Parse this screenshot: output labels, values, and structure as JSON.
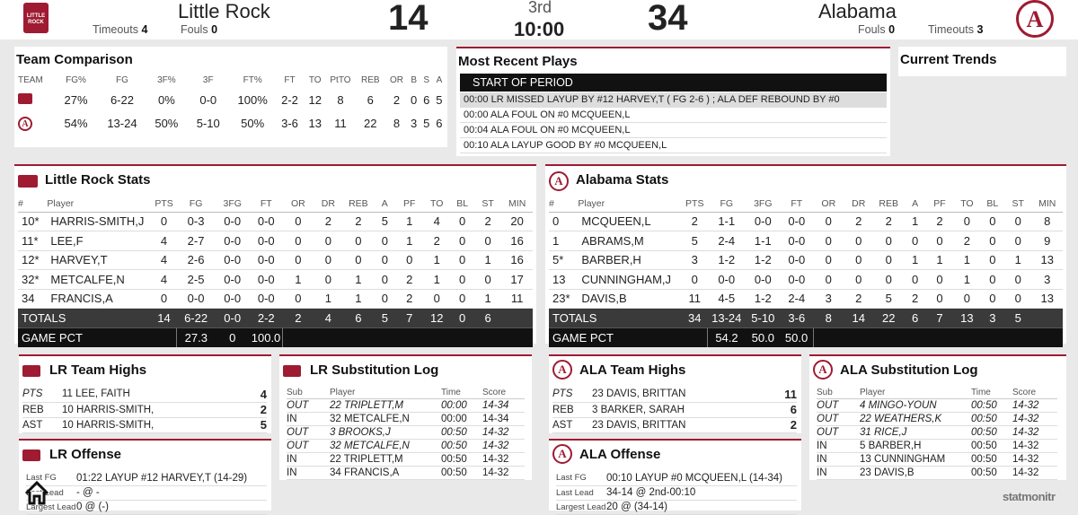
{
  "scoreboard": {
    "home": {
      "name": "Little Rock",
      "timeouts_label": "Timeouts",
      "timeouts": "4",
      "fouls_label": "Fouls",
      "fouls": "0",
      "score": "14",
      "logo_text": "LITTLE ROCK TROJANS"
    },
    "away": {
      "name": "Alabama",
      "timeouts_label": "Timeouts",
      "timeouts": "3",
      "fouls_label": "Fouls",
      "fouls": "0",
      "score": "34",
      "logo_text": "A"
    },
    "period": "3rd",
    "clock": "10:00"
  },
  "team_comparison": {
    "title": "Team Comparison",
    "headers": [
      "TEAM",
      "FG%",
      "FG",
      "3F%",
      "3F",
      "FT%",
      "FT",
      "TO",
      "PtTO",
      "REB",
      "OR",
      "B",
      "S",
      "A"
    ],
    "rows": [
      [
        "27%",
        "6-22",
        "0%",
        "0-0",
        "100%",
        "2-2",
        "12",
        "8",
        "6",
        "2",
        "0",
        "6",
        "5"
      ],
      [
        "54%",
        "13-24",
        "50%",
        "5-10",
        "50%",
        "3-6",
        "13",
        "11",
        "22",
        "8",
        "3",
        "5",
        "6"
      ]
    ]
  },
  "plays": {
    "title": "Most Recent Plays",
    "start_label": "START OF PERIOD",
    "items": [
      "00:00 LR MISSED LAYUP BY #12 HARVEY,T ( FG 2-6 ) ; ALA DEF REBOUND BY #0",
      "00:00 ALA FOUL ON #0 MCQUEEN,L",
      "00:04 ALA FOUL ON #0 MCQUEEN,L",
      "00:10 ALA LAYUP GOOD BY #0 MCQUEEN,L"
    ]
  },
  "trends": {
    "title": "Current Trends"
  },
  "lr_stats": {
    "title": "Little Rock Stats",
    "headers": [
      "#",
      "Player",
      "PTS",
      "FG",
      "3FG",
      "FT",
      "OR",
      "DR",
      "REB",
      "A",
      "PF",
      "TO",
      "BL",
      "ST",
      "MIN"
    ],
    "rows": [
      [
        "10*",
        "HARRIS-SMITH,J",
        "0",
        "0-3",
        "0-0",
        "0-0",
        "0",
        "2",
        "2",
        "5",
        "1",
        "4",
        "0",
        "2",
        "20"
      ],
      [
        "11*",
        "LEE,F",
        "4",
        "2-7",
        "0-0",
        "0-0",
        "0",
        "0",
        "0",
        "0",
        "1",
        "2",
        "0",
        "0",
        "16"
      ],
      [
        "12*",
        "HARVEY,T",
        "4",
        "2-6",
        "0-0",
        "0-0",
        "0",
        "0",
        "0",
        "0",
        "0",
        "1",
        "0",
        "1",
        "16"
      ],
      [
        "32*",
        "METCALFE,N",
        "4",
        "2-5",
        "0-0",
        "0-0",
        "1",
        "0",
        "1",
        "0",
        "2",
        "1",
        "0",
        "0",
        "17"
      ],
      [
        "34",
        "FRANCIS,A",
        "0",
        "0-0",
        "0-0",
        "0-0",
        "0",
        "1",
        "1",
        "0",
        "2",
        "0",
        "0",
        "1",
        "11"
      ]
    ],
    "totals_label": "TOTALS",
    "totals": [
      "14",
      "6-22",
      "0-0",
      "2-2",
      "2",
      "4",
      "6",
      "5",
      "7",
      "12",
      "0",
      "6"
    ],
    "pct_label": "GAME PCT",
    "pct": [
      "27.3",
      "0",
      "100.0"
    ]
  },
  "ala_stats": {
    "title": "Alabama Stats",
    "headers": [
      "#",
      "Player",
      "PTS",
      "FG",
      "3FG",
      "FT",
      "OR",
      "DR",
      "REB",
      "A",
      "PF",
      "TO",
      "BL",
      "ST",
      "MIN"
    ],
    "rows": [
      [
        "0",
        "MCQUEEN,L",
        "2",
        "1-1",
        "0-0",
        "0-0",
        "0",
        "2",
        "2",
        "1",
        "2",
        "0",
        "0",
        "0",
        "8"
      ],
      [
        "1",
        "ABRAMS,M",
        "5",
        "2-4",
        "1-1",
        "0-0",
        "0",
        "0",
        "0",
        "0",
        "0",
        "2",
        "0",
        "0",
        "9"
      ],
      [
        "5*",
        "BARBER,H",
        "3",
        "1-2",
        "1-2",
        "0-0",
        "0",
        "0",
        "0",
        "1",
        "1",
        "1",
        "0",
        "1",
        "13"
      ],
      [
        "13",
        "CUNNINGHAM,J",
        "0",
        "0-0",
        "0-0",
        "0-0",
        "0",
        "0",
        "0",
        "0",
        "0",
        "1",
        "0",
        "0",
        "3"
      ],
      [
        "23*",
        "DAVIS,B",
        "11",
        "4-5",
        "1-2",
        "2-4",
        "3",
        "2",
        "5",
        "2",
        "0",
        "0",
        "0",
        "0",
        "13"
      ]
    ],
    "totals_label": "TOTALS",
    "totals": [
      "34",
      "13-24",
      "5-10",
      "3-6",
      "8",
      "14",
      "22",
      "6",
      "7",
      "13",
      "3",
      "5"
    ],
    "pct_label": "GAME PCT",
    "pct": [
      "54.2",
      "50.0",
      "50.0"
    ]
  },
  "lr_highs": {
    "title": "LR Team Highs",
    "rows": [
      [
        "PTS",
        "11 LEE, FAITH",
        "4"
      ],
      [
        "REB",
        "10 HARRIS-SMITH,",
        "2"
      ],
      [
        "AST",
        "10 HARRIS-SMITH,",
        "5"
      ]
    ]
  },
  "lr_subs": {
    "title": "LR Substitution Log",
    "headers": [
      "Sub",
      "Player",
      "Time",
      "Score"
    ],
    "rows": [
      [
        "OUT",
        "22 TRIPLETT,M",
        "00:00",
        "14-34"
      ],
      [
        "IN",
        "32 METCALFE,N",
        "00:00",
        "14-34"
      ],
      [
        "OUT",
        "3 BROOKS,J",
        "00:50",
        "14-32"
      ],
      [
        "OUT",
        "32 METCALFE,N",
        "00:50",
        "14-32"
      ],
      [
        "IN",
        "22 TRIPLETT,M",
        "00:50",
        "14-32"
      ],
      [
        "IN",
        "34 FRANCIS,A",
        "00:50",
        "14-32"
      ]
    ]
  },
  "lr_offense": {
    "title": "LR Offense",
    "rows": [
      [
        "Last FG",
        "01:22 LAYUP #12 HARVEY,T (14-29)"
      ],
      [
        "Last Lead",
        "- @ -"
      ],
      [
        "Largest Lead",
        "0 @ (-)"
      ]
    ]
  },
  "ala_highs": {
    "title": "ALA Team Highs",
    "rows": [
      [
        "PTS",
        "23 DAVIS, BRITTAN",
        "11"
      ],
      [
        "REB",
        "3 BARKER, SARAH",
        "6"
      ],
      [
        "AST",
        "23 DAVIS, BRITTAN",
        "2"
      ]
    ]
  },
  "ala_subs": {
    "title": "ALA Substitution Log",
    "headers": [
      "Sub",
      "Player",
      "Time",
      "Score"
    ],
    "rows": [
      [
        "OUT",
        "4 MINGO-YOUN",
        "00:50",
        "14-32"
      ],
      [
        "OUT",
        "22 WEATHERS,K",
        "00:50",
        "14-32"
      ],
      [
        "OUT",
        "31 RICE,J",
        "00:50",
        "14-32"
      ],
      [
        "IN",
        "5 BARBER,H",
        "00:50",
        "14-32"
      ],
      [
        "IN",
        "13 CUNNINGHAM",
        "00:50",
        "14-32"
      ],
      [
        "IN",
        "23 DAVIS,B",
        "00:50",
        "14-32"
      ]
    ]
  },
  "ala_offense": {
    "title": "ALA Offense",
    "rows": [
      [
        "Last FG",
        "00:10 LAYUP #0 MCQUEEN,L (14-34)"
      ],
      [
        "Last Lead",
        "34-14 @ 2nd-00:10"
      ],
      [
        "Largest Lead",
        "20 @ (34-14)"
      ]
    ]
  },
  "brand": {
    "text": "statmonitr"
  },
  "colors": {
    "accent": "#9e1b32",
    "header_dark": "#3a3a3a",
    "black_row": "#111111"
  }
}
